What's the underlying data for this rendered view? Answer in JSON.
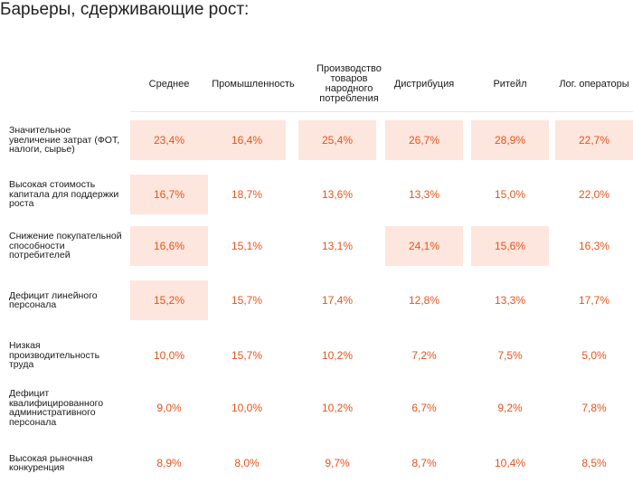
{
  "title": "Барьеры, сдерживающие рост:",
  "columns": [
    "Среднее",
    "Промышленность",
    "Производство товаров народного потребления",
    "Дистрибуция",
    "Ритейл",
    "Лог. операторы"
  ],
  "rows": [
    {
      "label": "Значительное увеличение затрат (ФОТ, налоги, сырье)",
      "values": [
        "23,4%",
        "16,4%",
        "25,4%",
        "26,7%",
        "28,9%",
        "22,7%"
      ],
      "highlight": [
        true,
        true,
        true,
        true,
        true,
        true
      ]
    },
    {
      "label": "Высокая стоимость капитала для поддержки роста",
      "values": [
        "16,7%",
        "18,7%",
        "13,6%",
        "13,3%",
        "15,0%",
        "22,0%"
      ],
      "highlight": [
        true,
        false,
        false,
        false,
        false,
        false
      ]
    },
    {
      "label": "Снижение покупательной способности потребителей",
      "values": [
        "16,6%",
        "15,1%",
        "13,1%",
        "24,1%",
        "15,6%",
        "16,3%"
      ],
      "highlight": [
        true,
        false,
        false,
        true,
        true,
        false
      ]
    },
    {
      "label": "Дефицит линейного персонала",
      "values": [
        "15,2%",
        "15,7%",
        "17,4%",
        "12,8%",
        "13,3%",
        "17,7%"
      ],
      "highlight": [
        true,
        false,
        false,
        false,
        false,
        false
      ]
    },
    {
      "label": "Низкая производительность труда",
      "values": [
        "10,0%",
        "15,7%",
        "10,2%",
        "7,2%",
        "7,5%",
        "5,0%"
      ],
      "highlight": [
        false,
        false,
        false,
        false,
        false,
        false
      ]
    },
    {
      "label": "Дефицит квалифицированного административного персонала",
      "values": [
        "9,0%",
        "10,0%",
        "10,2%",
        "6,7%",
        "9,2%",
        "7,8%"
      ],
      "highlight": [
        false,
        false,
        false,
        false,
        false,
        false
      ]
    },
    {
      "label": "Высокая рыночная конкуренция",
      "values": [
        "8,9%",
        "8,0%",
        "9,7%",
        "8,7%",
        "10,4%",
        "8,5%"
      ],
      "highlight": [
        false,
        false,
        false,
        false,
        false,
        false
      ]
    }
  ],
  "colors": {
    "value_text": "#e8531c",
    "highlight_bg": "#fde6dd"
  }
}
